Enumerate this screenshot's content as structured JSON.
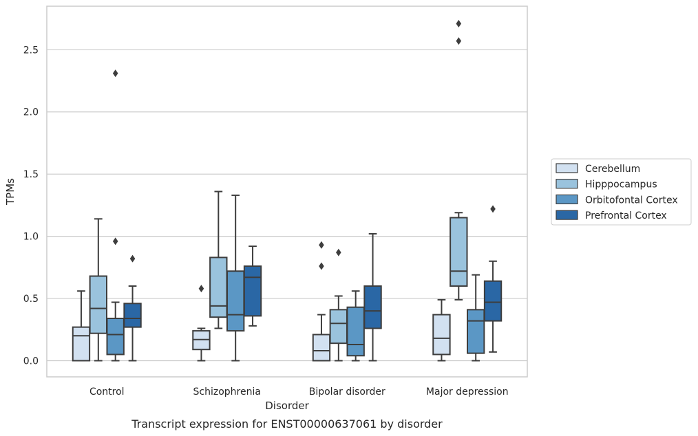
{
  "chart_data": {
    "type": "boxplot",
    "caption": "Transcript expression for ENST00000637061 by disorder",
    "xlabel": "Disorder",
    "ylabel": "TPMs",
    "ylim": [
      -0.13,
      2.85
    ],
    "yticks": [
      "0.0",
      "0.5",
      "1.0",
      "1.5",
      "2.0",
      "2.5"
    ],
    "ytick_values": [
      0.0,
      0.5,
      1.0,
      1.5,
      2.0,
      2.5
    ],
    "grid": "horizontal",
    "legend_position": "right",
    "categories": [
      "Control",
      "Schizophrenia",
      "Bipolar disorder",
      "Major depression"
    ],
    "series": [
      {
        "name": "Cerebellum",
        "color": "#d2e1f1",
        "boxes": [
          {
            "whislo": 0.0,
            "q1": 0.0,
            "med": 0.2,
            "q3": 0.27,
            "whishi": 0.56,
            "fliers": []
          },
          {
            "whislo": 0.0,
            "q1": 0.09,
            "med": 0.17,
            "q3": 0.24,
            "whishi": 0.26,
            "fliers": [
              0.58
            ]
          },
          {
            "whislo": 0.0,
            "q1": 0.0,
            "med": 0.08,
            "q3": 0.21,
            "whishi": 0.37,
            "fliers": [
              0.76,
              0.93
            ]
          },
          {
            "whislo": 0.0,
            "q1": 0.05,
            "med": 0.18,
            "q3": 0.37,
            "whishi": 0.49,
            "fliers": []
          }
        ]
      },
      {
        "name": "Hipppocampus",
        "color": "#9ac3dd",
        "boxes": [
          {
            "whislo": 0.0,
            "q1": 0.22,
            "med": 0.42,
            "q3": 0.68,
            "whishi": 1.14,
            "fliers": []
          },
          {
            "whislo": 0.26,
            "q1": 0.35,
            "med": 0.44,
            "q3": 0.83,
            "whishi": 1.36,
            "fliers": []
          },
          {
            "whislo": 0.0,
            "q1": 0.14,
            "med": 0.3,
            "q3": 0.41,
            "whishi": 0.52,
            "fliers": [
              0.87
            ]
          },
          {
            "whislo": 0.49,
            "q1": 0.6,
            "med": 0.72,
            "q3": 1.15,
            "whishi": 1.19,
            "fliers": [
              2.57,
              2.71
            ]
          }
        ]
      },
      {
        "name": "Orbitofontal Cortex",
        "color": "#5b97c5",
        "boxes": [
          {
            "whislo": 0.0,
            "q1": 0.05,
            "med": 0.21,
            "q3": 0.34,
            "whishi": 0.47,
            "fliers": [
              0.96,
              2.31
            ]
          },
          {
            "whislo": 0.0,
            "q1": 0.24,
            "med": 0.37,
            "q3": 0.72,
            "whishi": 1.33,
            "fliers": []
          },
          {
            "whislo": 0.0,
            "q1": 0.04,
            "med": 0.13,
            "q3": 0.43,
            "whishi": 0.56,
            "fliers": []
          },
          {
            "whislo": 0.0,
            "q1": 0.06,
            "med": 0.32,
            "q3": 0.41,
            "whishi": 0.69,
            "fliers": []
          }
        ]
      },
      {
        "name": "Prefrontal Cortex",
        "color": "#2a67a5",
        "boxes": [
          {
            "whislo": 0.0,
            "q1": 0.27,
            "med": 0.34,
            "q3": 0.46,
            "whishi": 0.6,
            "fliers": [
              0.82
            ]
          },
          {
            "whislo": 0.28,
            "q1": 0.36,
            "med": 0.67,
            "q3": 0.76,
            "whishi": 0.92,
            "fliers": []
          },
          {
            "whislo": 0.0,
            "q1": 0.26,
            "med": 0.4,
            "q3": 0.6,
            "whishi": 1.02,
            "fliers": []
          },
          {
            "whislo": 0.07,
            "q1": 0.32,
            "med": 0.47,
            "q3": 0.64,
            "whishi": 0.8,
            "fliers": [
              1.22
            ]
          }
        ]
      }
    ]
  }
}
